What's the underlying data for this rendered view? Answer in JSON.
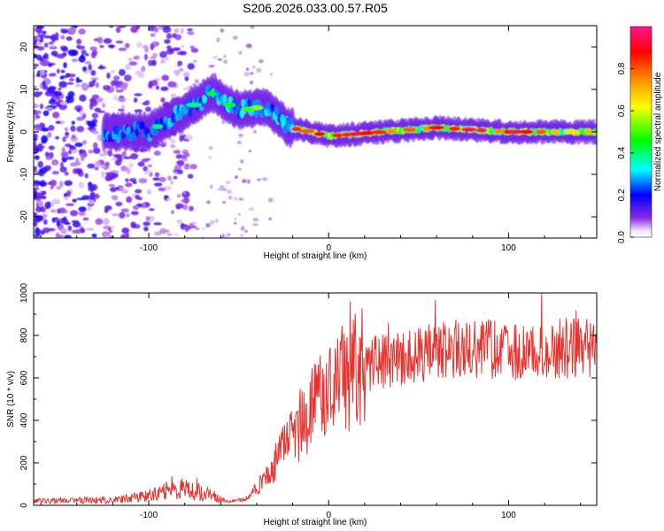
{
  "title": "S206.2026.033.00.57.R05",
  "colors": {
    "line": "#e8322e",
    "axis": "#000000",
    "background": "#ffffff"
  },
  "chart_data": [
    {
      "type": "heatmap",
      "name": "spectrogram",
      "xlabel": "Height of straight line (km)",
      "ylabel": "Frequency (Hz)",
      "xlim": [
        -164,
        149
      ],
      "ylim": [
        -25,
        25
      ],
      "x_ticks": [
        -100,
        0,
        100
      ],
      "y_ticks": [
        -20,
        -10,
        0,
        10,
        20
      ],
      "x_tick_labels": [
        "-100",
        "0",
        "100"
      ],
      "y_tick_labels": [
        "-20",
        "-10",
        "0",
        "10",
        "20"
      ],
      "colorbar": {
        "label": "Normalized spectral amplitude",
        "range": [
          0,
          1
        ],
        "ticks": [
          0.0,
          0.2,
          0.4,
          0.6,
          0.8
        ],
        "tick_labels": [
          "0.0",
          "0.2",
          "0.4",
          "0.6",
          "0.8"
        ],
        "colormap": [
          "#ffffff",
          "#8a2be2",
          "#0000ff",
          "#00ffff",
          "#00ff00",
          "#ffff00",
          "#ff8c00",
          "#ff0000",
          "#ff1493"
        ]
      },
      "ridge_frequency": [
        {
          "x": -100,
          "y": 0
        },
        {
          "x": -80,
          "y": 5
        },
        {
          "x": -65,
          "y": 9
        },
        {
          "x": -50,
          "y": 5
        },
        {
          "x": -35,
          "y": 6
        },
        {
          "x": -22,
          "y": 1
        },
        {
          "x": -10,
          "y": 0
        },
        {
          "x": 0,
          "y": -1
        },
        {
          "x": 30,
          "y": 0
        },
        {
          "x": 60,
          "y": 1
        },
        {
          "x": 100,
          "y": 0
        },
        {
          "x": 149,
          "y": 0
        }
      ]
    },
    {
      "type": "line",
      "name": "snr",
      "xlabel": "Height of straight line (km)",
      "ylabel": "SNR (10 * v/v)",
      "xlim": [
        -164,
        149
      ],
      "ylim": [
        0,
        1000
      ],
      "x_ticks": [
        -100,
        0,
        100
      ],
      "y_ticks": [
        0,
        200,
        400,
        600,
        800,
        1000
      ],
      "x_tick_labels": [
        "-100",
        "0",
        "100"
      ],
      "y_tick_labels": [
        "0",
        "200",
        "400",
        "600",
        "800",
        "1000"
      ],
      "envelope": {
        "x": [
          -164,
          -120,
          -100,
          -85,
          -70,
          -55,
          -45,
          -35,
          -25,
          -15,
          -5,
          10,
          20,
          40,
          60,
          80,
          100,
          120,
          149
        ],
        "y": [
          20,
          25,
          45,
          80,
          60,
          15,
          30,
          130,
          260,
          390,
          490,
          600,
          660,
          700,
          730,
          740,
          730,
          730,
          750
        ]
      }
    }
  ]
}
